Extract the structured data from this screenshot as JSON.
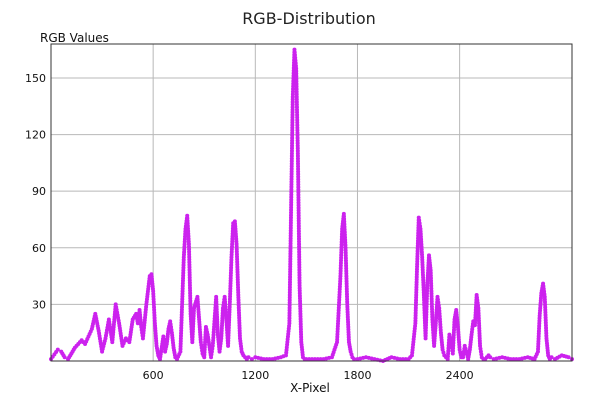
{
  "chart_data": {
    "type": "scatter",
    "title": "RGB-Distribution",
    "xlabel": "X-Pixel",
    "ylabel": "RGB Values",
    "xlim": [
      0,
      3060
    ],
    "ylim": [
      0,
      168
    ],
    "x_ticks": [
      600,
      1200,
      1800,
      2400
    ],
    "y_ticks": [
      30,
      60,
      90,
      120,
      150
    ],
    "grid": true,
    "legend": "none",
    "color": "#cc22ee",
    "series": [
      {
        "x": [
          0,
          40,
          60,
          80,
          100,
          120,
          140,
          160,
          180,
          200,
          220,
          240,
          260,
          280,
          300,
          320,
          340,
          360,
          380,
          400,
          420,
          440,
          460,
          480,
          500,
          510,
          520,
          530,
          540,
          560,
          580,
          590,
          600,
          610,
          620,
          630,
          640,
          660,
          670,
          680,
          690,
          700,
          710,
          720,
          730,
          740,
          760,
          780,
          790,
          800,
          810,
          820,
          830,
          840,
          860,
          870,
          880,
          890,
          900,
          910,
          920,
          940,
          950,
          960,
          970,
          980,
          990,
          1000,
          1010,
          1020,
          1030,
          1040,
          1050,
          1060,
          1070,
          1080,
          1090,
          1100,
          1110,
          1120,
          1130,
          1140,
          1150,
          1160,
          1180,
          1200,
          1250,
          1300,
          1350,
          1380,
          1400,
          1410,
          1420,
          1430,
          1440,
          1450,
          1460,
          1470,
          1480,
          1490,
          1500,
          1550,
          1600,
          1650,
          1680,
          1700,
          1710,
          1720,
          1730,
          1740,
          1750,
          1760,
          1770,
          1780,
          1800,
          1850,
          1900,
          1950,
          2000,
          2050,
          2100,
          2120,
          2140,
          2150,
          2160,
          2170,
          2180,
          2190,
          2200,
          2210,
          2220,
          2230,
          2240,
          2250,
          2260,
          2270,
          2280,
          2290,
          2300,
          2310,
          2320,
          2330,
          2340,
          2350,
          2360,
          2370,
          2380,
          2390,
          2400,
          2410,
          2420,
          2430,
          2440,
          2450,
          2460,
          2470,
          2480,
          2490,
          2500,
          2510,
          2520,
          2530,
          2540,
          2550,
          2560,
          2570,
          2580,
          2600,
          2650,
          2700,
          2750,
          2800,
          2840,
          2860,
          2870,
          2880,
          2890,
          2900,
          2910,
          2920,
          2930,
          2940,
          2960,
          3000,
          3040,
          3060
        ],
        "y": [
          1,
          6,
          5,
          2,
          1,
          4,
          7,
          9,
          11,
          9,
          13,
          17,
          25,
          16,
          5,
          12,
          22,
          10,
          30,
          20,
          8,
          12,
          10,
          22,
          25,
          20,
          27,
          18,
          12,
          30,
          45,
          46,
          37,
          20,
          8,
          3,
          1,
          13,
          5,
          9,
          17,
          21,
          15,
          7,
          2,
          1,
          5,
          55,
          70,
          77,
          62,
          25,
          10,
          28,
          34,
          22,
          10,
          4,
          2,
          18,
          14,
          2,
          8,
          21,
          34,
          14,
          5,
          12,
          28,
          34,
          22,
          8,
          30,
          55,
          73,
          74,
          62,
          35,
          12,
          5,
          3,
          2,
          1,
          2,
          1,
          2,
          1,
          1,
          2,
          3,
          20,
          80,
          140,
          165,
          155,
          110,
          40,
          10,
          2,
          1,
          1,
          1,
          1,
          2,
          10,
          45,
          70,
          78,
          60,
          30,
          10,
          5,
          2,
          1,
          1,
          2,
          1,
          0,
          2,
          1,
          1,
          3,
          20,
          50,
          76,
          70,
          55,
          35,
          12,
          40,
          56,
          48,
          22,
          8,
          20,
          34,
          28,
          15,
          6,
          3,
          2,
          1,
          14,
          10,
          4,
          22,
          27,
          18,
          6,
          2,
          2,
          8,
          5,
          1,
          6,
          14,
          21,
          19,
          35,
          28,
          8,
          2,
          1,
          1,
          2,
          3,
          2,
          1,
          2,
          1,
          1,
          2,
          1,
          5,
          24,
          36,
          41,
          34,
          12,
          3,
          1,
          2,
          1,
          3,
          2,
          1
        ]
      }
    ]
  }
}
